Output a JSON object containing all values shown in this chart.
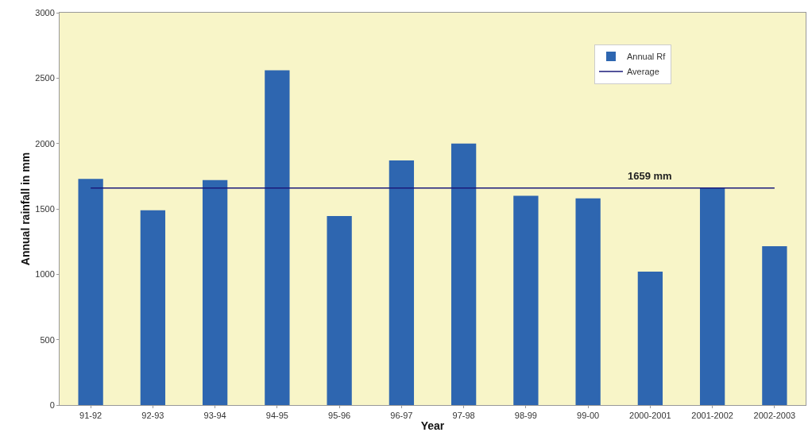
{
  "chart_data": {
    "type": "bar",
    "xlabel": "Year",
    "ylabel": "Annual rainfall in mm",
    "categories": [
      "91-92",
      "92-93",
      "93-94",
      "94-95",
      "95-96",
      "96-97",
      "97-98",
      "98-99",
      "99-00",
      "2000-2001",
      "2001-2002",
      "2002-2003"
    ],
    "series": [
      {
        "name": "Annual Rf",
        "color": "#2e66b0",
        "values": [
          1730,
          1490,
          1720,
          2560,
          1445,
          1870,
          2000,
          1600,
          1580,
          1020,
          1660,
          1215
        ]
      },
      {
        "name": "Average",
        "type": "line",
        "color": "#1a1a7a",
        "values": [
          1659,
          1659,
          1659,
          1659,
          1659,
          1659,
          1659,
          1659,
          1659,
          1659,
          1659,
          1659
        ]
      }
    ],
    "annotations": [
      {
        "text": "1659 mm",
        "x": "2000-2001",
        "y": 1659
      }
    ],
    "ylim": [
      0,
      3000
    ],
    "yticks": [
      0,
      500,
      1000,
      1500,
      2000,
      2500,
      3000
    ],
    "grid": false,
    "legend": "top right"
  }
}
